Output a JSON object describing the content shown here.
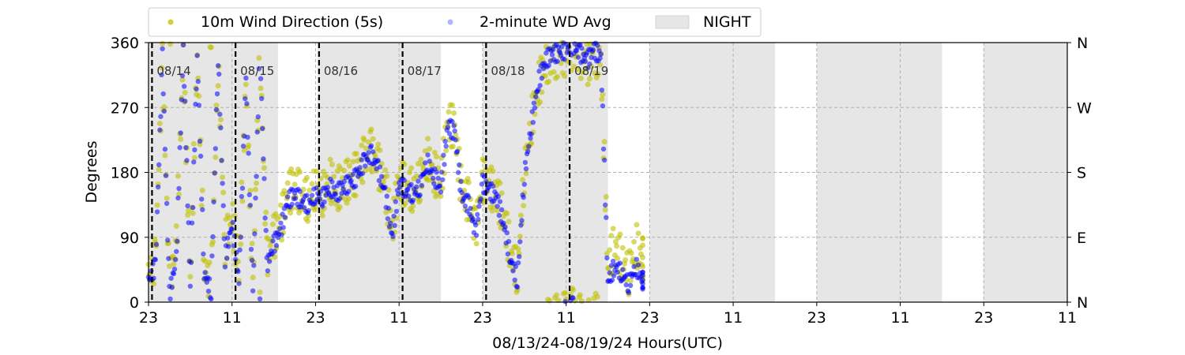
{
  "chart_data": {
    "type": "scatter",
    "title": "",
    "xlabel": "08/13/24-08/19/24  Hours(UTC)",
    "ylabel": "Degrees",
    "xlim_hours": [
      0,
      132
    ],
    "ylim": [
      0,
      360
    ],
    "x_ticks": [
      {
        "hour": 0,
        "label": "23"
      },
      {
        "hour": 12,
        "label": "11"
      },
      {
        "hour": 24,
        "label": "23"
      },
      {
        "hour": 36,
        "label": "11"
      },
      {
        "hour": 48,
        "label": "23"
      },
      {
        "hour": 60,
        "label": "11"
      },
      {
        "hour": 72,
        "label": "23"
      },
      {
        "hour": 84,
        "label": "11"
      },
      {
        "hour": 96,
        "label": "23"
      },
      {
        "hour": 108,
        "label": "11"
      },
      {
        "hour": 120,
        "label": "23"
      },
      {
        "hour": 132,
        "label": "11"
      }
    ],
    "y_ticks": [
      0,
      90,
      180,
      270,
      360
    ],
    "y_right_labels": [
      {
        "value": 0,
        "label": "N"
      },
      {
        "value": 90,
        "label": "E"
      },
      {
        "value": 180,
        "label": "S"
      },
      {
        "value": 270,
        "label": "W"
      },
      {
        "value": 360,
        "label": "N"
      }
    ],
    "grid": "horizontal and vertical dashed",
    "legend_position": "above plot, upper left",
    "legend": [
      {
        "label": "10m Wind Direction (5s)",
        "kind": "marker",
        "color": "#bfbf00"
      },
      {
        "label": "2-minute WD Avg",
        "kind": "marker",
        "color": "#0000ff"
      },
      {
        "label": "NIGHT",
        "kind": "patch",
        "color": "#e6e6e6"
      }
    ],
    "night_periods": [
      {
        "start": 0,
        "end": 18
      },
      {
        "start": 12.3,
        "end": 18.6
      },
      {
        "start": 24.3,
        "end": 42
      },
      {
        "start": 48,
        "end": 66
      },
      {
        "start": 72,
        "end": 90
      },
      {
        "start": 96,
        "end": 114
      },
      {
        "start": 120,
        "end": 138
      }
    ],
    "day_markers": [
      {
        "hour": 0.5,
        "label": "08/14"
      },
      {
        "hour": 12.5,
        "label": "08/15"
      },
      {
        "hour": 24.5,
        "label": "08/16"
      },
      {
        "hour": 36.5,
        "label": "08/17"
      },
      {
        "hour": 48.5,
        "label": "08/18"
      },
      {
        "hour": 60.5,
        "label": "08/19"
      }
    ],
    "series": [
      {
        "name": "10m Wind Direction (5s)",
        "color": "#bfbf00",
        "points_approx": [
          [
            0,
            40
          ],
          [
            1,
            60
          ],
          [
            2,
            330
          ],
          [
            3,
            20
          ],
          [
            4,
            80
          ],
          [
            5,
            340
          ],
          [
            6,
            30
          ],
          [
            7,
            350
          ],
          [
            8,
            50
          ],
          [
            9,
            20
          ],
          [
            10,
            330
          ],
          [
            11,
            80
          ],
          [
            12,
            120
          ],
          [
            13,
            40
          ],
          [
            14,
            300
          ],
          [
            15,
            20
          ],
          [
            16,
            350
          ],
          [
            17,
            60
          ],
          [
            18,
            90
          ],
          [
            19,
            110
          ],
          [
            20,
            150
          ],
          [
            21,
            160
          ],
          [
            22,
            150
          ],
          [
            23,
            140
          ],
          [
            24,
            160
          ],
          [
            25,
            150
          ],
          [
            26,
            170
          ],
          [
            27,
            155
          ],
          [
            28,
            165
          ],
          [
            29,
            170
          ],
          [
            30,
            180
          ],
          [
            31,
            200
          ],
          [
            32,
            210
          ],
          [
            33,
            190
          ],
          [
            34,
            160
          ],
          [
            35,
            100
          ],
          [
            36,
            170
          ],
          [
            37,
            160
          ],
          [
            38,
            155
          ],
          [
            39,
            170
          ],
          [
            40,
            200
          ],
          [
            41,
            180
          ],
          [
            42,
            165
          ],
          [
            43,
            250
          ],
          [
            44,
            240
          ],
          [
            45,
            150
          ],
          [
            46,
            140
          ],
          [
            47,
            100
          ],
          [
            48,
            170
          ],
          [
            49,
            160
          ],
          [
            50,
            150
          ],
          [
            51,
            120
          ],
          [
            52,
            70
          ],
          [
            53,
            40
          ],
          [
            54,
            180
          ],
          [
            55,
            250
          ],
          [
            56,
            300
          ],
          [
            57,
            330
          ],
          [
            58,
            340
          ],
          [
            59,
            340
          ],
          [
            60,
            345
          ],
          [
            61,
            350
          ],
          [
            62,
            340
          ],
          [
            63,
            330
          ],
          [
            64,
            345
          ],
          [
            65,
            335
          ],
          [
            66,
            50
          ],
          [
            67,
            80
          ],
          [
            68,
            60
          ],
          [
            69,
            40
          ],
          [
            70,
            80
          ],
          [
            71,
            60
          ]
        ]
      },
      {
        "name": "2-minute WD Avg",
        "color": "#0000ff",
        "points_approx": [
          [
            0,
            30
          ],
          [
            1,
            50
          ],
          [
            2,
            340
          ],
          [
            3,
            10
          ],
          [
            4,
            60
          ],
          [
            5,
            350
          ],
          [
            6,
            20
          ],
          [
            7,
            345
          ],
          [
            8,
            40
          ],
          [
            9,
            15
          ],
          [
            10,
            340
          ],
          [
            11,
            60
          ],
          [
            12,
            110
          ],
          [
            13,
            30
          ],
          [
            14,
            310
          ],
          [
            15,
            10
          ],
          [
            16,
            355
          ],
          [
            17,
            50
          ],
          [
            18,
            80
          ],
          [
            19,
            100
          ],
          [
            20,
            140
          ],
          [
            21,
            150
          ],
          [
            22,
            140
          ],
          [
            23,
            135
          ],
          [
            24,
            150
          ],
          [
            25,
            145
          ],
          [
            26,
            160
          ],
          [
            27,
            150
          ],
          [
            28,
            160
          ],
          [
            29,
            165
          ],
          [
            30,
            175
          ],
          [
            31,
            195
          ],
          [
            32,
            205
          ],
          [
            33,
            185
          ],
          [
            34,
            150
          ],
          [
            35,
            90
          ],
          [
            36,
            165
          ],
          [
            37,
            155
          ],
          [
            38,
            150
          ],
          [
            39,
            160
          ],
          [
            40,
            195
          ],
          [
            41,
            175
          ],
          [
            42,
            160
          ],
          [
            43,
            245
          ],
          [
            44,
            235
          ],
          [
            45,
            145
          ],
          [
            46,
            135
          ],
          [
            47,
            95
          ],
          [
            48,
            165
          ],
          [
            49,
            155
          ],
          [
            50,
            145
          ],
          [
            51,
            110
          ],
          [
            52,
            60
          ],
          [
            53,
            30
          ],
          [
            54,
            175
          ],
          [
            55,
            245
          ],
          [
            56,
            305
          ],
          [
            57,
            335
          ],
          [
            58,
            345
          ],
          [
            59,
            345
          ],
          [
            60,
            350
          ],
          [
            61,
            355
          ],
          [
            62,
            345
          ],
          [
            63,
            335
          ],
          [
            64,
            350
          ],
          [
            65,
            340
          ],
          [
            66,
            30
          ],
          [
            67,
            50
          ],
          [
            68,
            40
          ],
          [
            69,
            25
          ],
          [
            70,
            50
          ],
          [
            71,
            30
          ]
        ]
      }
    ]
  }
}
